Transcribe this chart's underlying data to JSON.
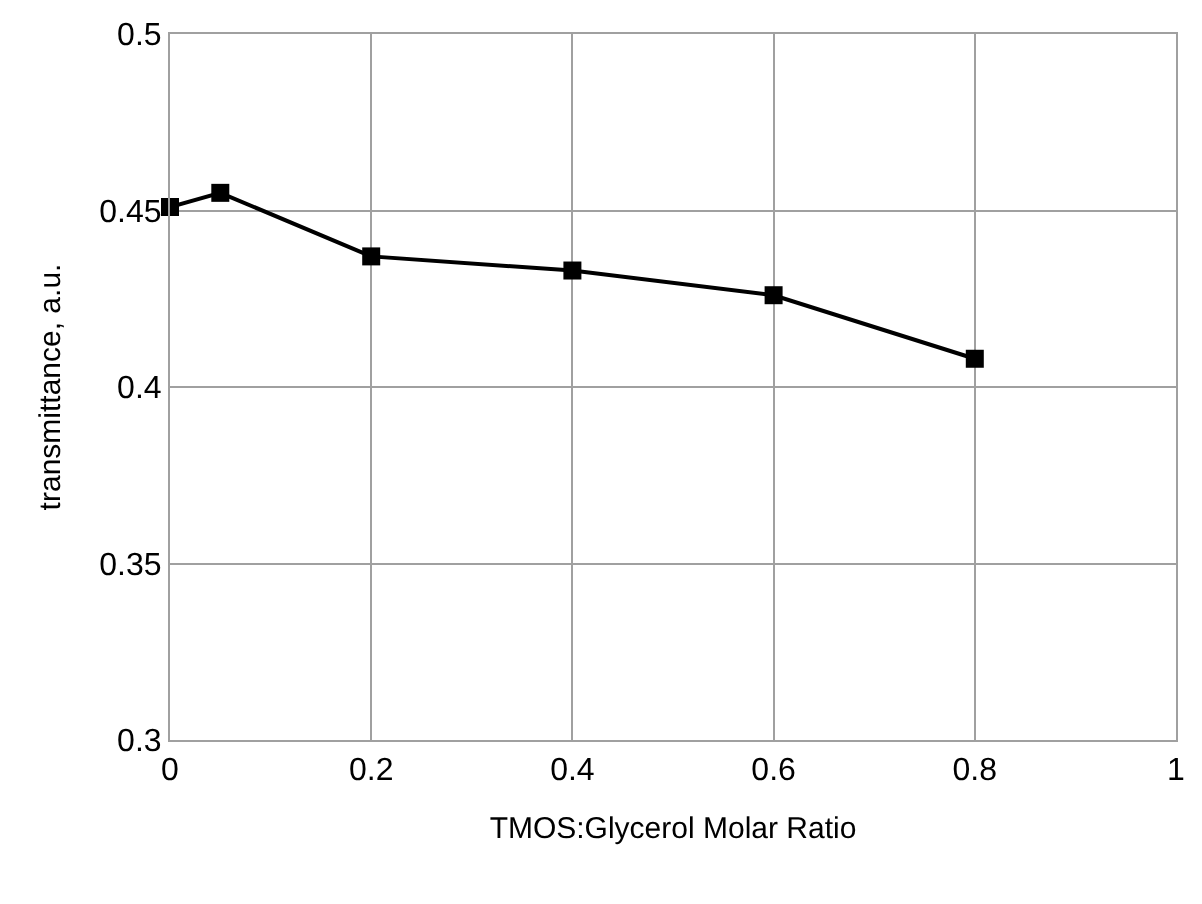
{
  "chart_data": {
    "type": "line",
    "xlabel": "TMOS:Glycerol Molar Ratio",
    "ylabel": "transmittance, a.u.",
    "x": [
      0,
      0.05,
      0.2,
      0.4,
      0.6,
      0.8
    ],
    "series": [
      {
        "color": "#000000",
        "values": [
          0.451,
          0.455,
          0.437,
          0.433,
          0.426,
          0.408
        ]
      }
    ],
    "xlim": [
      0,
      1
    ],
    "xticks": [
      0,
      0.2,
      0.4,
      0.6,
      0.8,
      1
    ],
    "ylim": [
      0.3,
      0.5
    ],
    "yticks": [
      0.3,
      0.35,
      0.4,
      0.45,
      0.5
    ],
    "grid": true,
    "legend": false,
    "marker": "square",
    "line_style": "solid"
  }
}
